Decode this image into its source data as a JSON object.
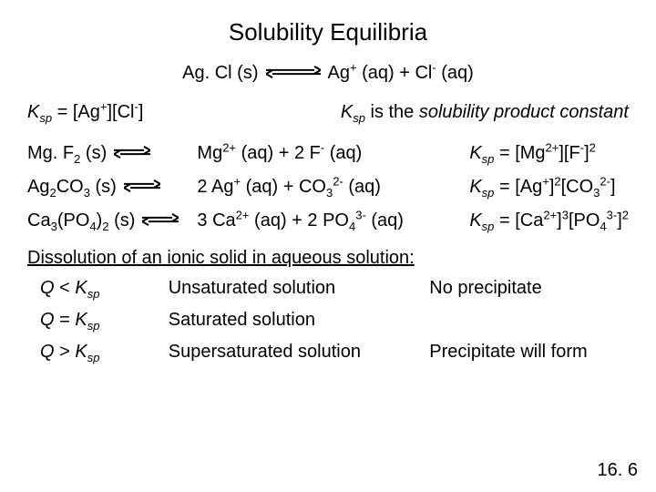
{
  "title": "Solubility Equilibria",
  "main_eq": {
    "left": "Ag. Cl (s)",
    "right_html": "Ag<sup>+</sup> (aq) + Cl<sup>-</sup> (aq)"
  },
  "ksp_def_html": "<span class='ital'>K<sub>sp</sub></span> = [Ag<sup>+</sup>][Cl<sup>-</sup>]",
  "ksp_text_html": "<span class='ital'>K<sub>sp</sub></span> is the <span class='ital'>solubility product constant</span>",
  "eqs": [
    {
      "left_html": "Mg. F<sub>2</sub> (s)",
      "right_html": "Mg<sup>2+</sup> (aq) + 2 F<sup>-</sup> (aq)",
      "ksp_html": "<span class='ital'>K<sub>sp</sub></span> = [Mg<sup>2+</sup>][F<sup>-</sup>]<sup>2</sup>"
    },
    {
      "left_html": "Ag<sub>2</sub>CO<sub>3</sub> (s)",
      "right_html": "2 Ag<sup>+</sup> (aq) + CO<sub>3</sub><sup>2-</sup> (aq)",
      "ksp_html": "<span class='ital'>K<sub>sp</sub></span> = [Ag<sup>+</sup>]<sup>2</sup>[CO<sub>3</sub><sup>2-</sup>]"
    },
    {
      "left_html": "Ca<sub>3</sub>(PO<sub>4</sub>)<sub>2</sub> (s)",
      "right_html": "3 Ca<sup>2+</sup> (aq) + 2 PO<sub>4</sub><sup>3-</sup> (aq)",
      "ksp_html": "<span class='ital'>K<sub>sp</sub></span> = [Ca<sup>2+</sup>]<sup>3</sup>[PO<sub>4</sub><sup>3-</sup>]<sup>2</sup>"
    }
  ],
  "dissolution_heading": "Dissolution of an ionic solid in aqueous solution:",
  "qrows": [
    {
      "cond_html": "<span class='ital'>Q</span> &lt; <span class='ital'>K<sub>sp</sub></span>",
      "state": "Unsaturated solution",
      "result": "No precipitate"
    },
    {
      "cond_html": "<span class='ital'>Q</span> = <span class='ital'>K<sub>sp</sub></span>",
      "state": "Saturated solution",
      "result": ""
    },
    {
      "cond_html": "<span class='ital'>Q</span> &gt; <span class='ital'>K<sub>sp</sub></span>",
      "state": "Supersaturated solution",
      "result": "Precipitate will form"
    }
  ],
  "pagenum": "16. 6",
  "arrow": {
    "large_w": 60,
    "small_w": 40,
    "h": 14,
    "color": "#000",
    "stroke": 2
  }
}
